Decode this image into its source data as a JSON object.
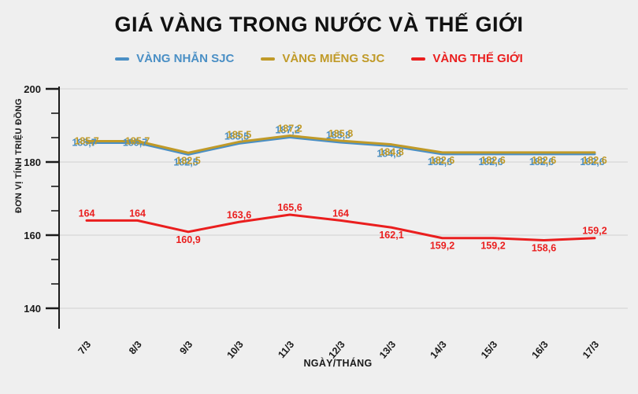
{
  "title": "GIÁ VÀNG TRONG NƯỚC VÀ THẾ GIỚI",
  "colors": {
    "background": "#efefef",
    "axis": "#1a1a1a",
    "grid": "#d8d8d8",
    "blue": "#4a8fc5",
    "gold": "#c09a28",
    "red": "#ea1e1e"
  },
  "chart_data": {
    "type": "line",
    "categories": [
      "7/3",
      "8/3",
      "9/3",
      "10/3",
      "11/3",
      "12/3",
      "13/3",
      "14/3",
      "15/3",
      "16/3",
      "17/3"
    ],
    "series": [
      {
        "name": "VÀNG NHẪN SJC",
        "color": "#4a8fc5",
        "values": [
          185.7,
          185.7,
          182.5,
          185.5,
          187.2,
          185.8,
          184.8,
          182.6,
          182.6,
          182.6,
          182.6
        ],
        "labels": [
          "185,7",
          "185,7",
          "182,5",
          "185,5",
          "187,2",
          "185,8",
          "184,8",
          "182,6",
          "182,6",
          "182,6",
          "182,6"
        ]
      },
      {
        "name": "VÀNG MIẾNG SJC",
        "color": "#c09a28",
        "values": [
          185.7,
          185.7,
          182.5,
          185.5,
          187.2,
          185.8,
          184.8,
          182.6,
          182.6,
          182.6,
          182.6
        ],
        "labels": [
          "185,7",
          "185,7",
          "182,5",
          "185,5",
          "187,2",
          "185,8",
          "184,8",
          "182,6",
          "182,6",
          "182,6",
          "182,6"
        ]
      },
      {
        "name": "VÀNG THẾ GIỚI",
        "color": "#ea1e1e",
        "values": [
          164,
          164,
          160.9,
          163.6,
          165.6,
          164,
          162.1,
          159.2,
          159.2,
          158.6,
          159.2
        ],
        "labels": [
          "164",
          "164",
          "160,9",
          "163,6",
          "165,6",
          "164",
          "162,1",
          "159,2",
          "159,2",
          "158,6",
          "159,2"
        ]
      }
    ],
    "xlabel": "NGÀY/THÁNG",
    "ylabel": "ĐƠN VỊ TÍNH TRIỆU ĐỒNG",
    "ylim": [
      140,
      200
    ],
    "yticks": [
      140,
      160,
      180,
      200
    ],
    "grid": true,
    "legend_position": "top",
    "label_sides": {
      "domestic": [
        "center",
        "center",
        "below",
        "above",
        "above",
        "above",
        "below",
        "below",
        "below",
        "below",
        "below"
      ],
      "world": [
        "above",
        "above",
        "below",
        "above",
        "above",
        "above",
        "below",
        "below",
        "below",
        "below",
        "above"
      ]
    }
  }
}
